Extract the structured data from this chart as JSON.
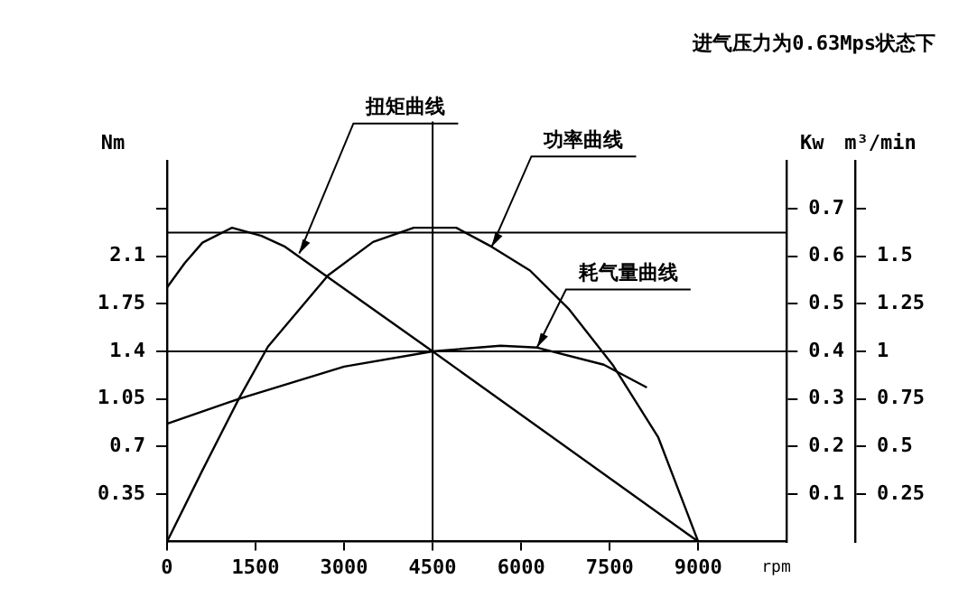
{
  "chart_data": {
    "type": "line",
    "title": "进气压力为0.63Mps状态下",
    "xlabel": "rpm",
    "ylabel": "Nm",
    "y2label": "Kw",
    "y3label": "m³/min",
    "xlim": [
      0,
      10500
    ],
    "xticks": [
      0,
      1500,
      3000,
      4500,
      6000,
      7500,
      9000
    ],
    "ylim": [
      0,
      2.8
    ],
    "yticks": [
      0.35,
      0.7,
      1.05,
      1.4,
      1.75,
      2.1,
      {
        "value": 2.45,
        "label": null
      }
    ],
    "y2lim": [
      0,
      0.8
    ],
    "y2ticks": [
      0.1,
      0.2,
      0.3,
      0.4,
      0.5,
      0.6,
      0.7
    ],
    "y3lim": [
      0,
      2
    ],
    "y3ticks": [
      0.25,
      0.5,
      0.75,
      1,
      1.25,
      1.5,
      {
        "value": 1.75,
        "label": null
      }
    ],
    "series": [
      {
        "color": "#000000",
        "axis": "y",
        "x": [
          0,
          300,
          600,
          1100,
          1600,
          2000,
          4500,
          9000
        ],
        "values": [
          1.87,
          2.05,
          2.2,
          2.31,
          2.25,
          2.17,
          1.4,
          0
        ]
      },
      {
        "color": "#000000",
        "axis": "y2",
        "x": [
          0,
          600,
          1215,
          1710,
          2730,
          3490,
          4180,
          4900,
          5500,
          6150,
          6800,
          7560,
          8320,
          9000
        ],
        "values": [
          0,
          0.15,
          0.3,
          0.41,
          0.56,
          0.63,
          0.66,
          0.66,
          0.62,
          0.57,
          0.49,
          0.37,
          0.22,
          0
        ]
      },
      {
        "color": "#000000",
        "axis": "y3",
        "x": [
          0,
          1215,
          3000,
          4500,
          5650,
          6270,
          7400,
          8130
        ],
        "values": [
          0.62,
          0.75,
          0.92,
          1,
          1.03,
          1.02,
          0.93,
          0.81
        ]
      }
    ],
    "ref_lines": [
      {
        "axis": "x",
        "value": 4500
      },
      {
        "axis": "y",
        "value": 1.4
      },
      {
        "axis": "y2",
        "value": 0.65
      }
    ],
    "annotations": [
      {
        "text": "扭矩曲线",
        "x": 2240,
        "y": 2.12
      },
      {
        "text": "功率曲线",
        "x": 5500,
        "y": 2.17
      },
      {
        "text": "耗气量曲线",
        "x": 6270,
        "y": 1.43
      }
    ],
    "grid": false,
    "marker": "none",
    "line_style": "solid"
  }
}
